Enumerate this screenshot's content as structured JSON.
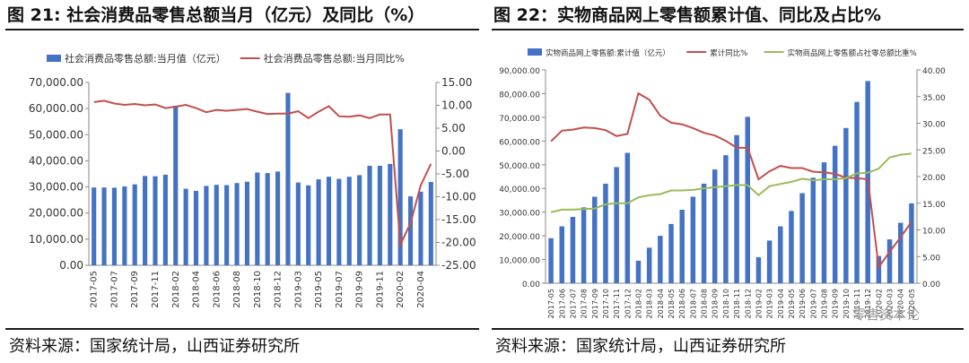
{
  "panels": [
    {
      "title": "图 21: 社会消费品零售总额当月（亿元）及同比（%）",
      "source": "资料来源：国家统计局，山西证券研究所"
    },
    {
      "title": "图 22：实物商品网上零售额累计值、同比及占比%",
      "source": "资料来源：国家统计局，山西证券研究所"
    }
  ],
  "watermark": "零售资本论",
  "colors": {
    "bar": "#4472c4",
    "line_red": "#c0504d",
    "line_green": "#9bbb59",
    "axis": "#888888",
    "text": "#333333"
  },
  "chart_data": [
    {
      "type": "bar",
      "title": "",
      "categories": [
        "2017-05",
        "2017-06",
        "2017-07",
        "2017-08",
        "2017-09",
        "2017-10",
        "2017-11",
        "2017-12",
        "2018-02",
        "2018-03",
        "2018-04",
        "2018-05",
        "2018-06",
        "2018-07",
        "2018-08",
        "2018-09",
        "2018-10",
        "2018-11",
        "2018-12",
        "2019-02",
        "2019-03",
        "2019-04",
        "2019-05",
        "2019-06",
        "2019-07",
        "2019-08",
        "2019-09",
        "2019-10",
        "2019-11",
        "2019-12",
        "2020-02",
        "2020-03",
        "2020-04",
        "2020-05"
      ],
      "x_tick_labels": [
        "2017-05",
        "2017-07",
        "2017-09",
        "2017-11",
        "2018-02",
        "2018-04",
        "2018-06",
        "2018-08",
        "2018-10",
        "2018-12",
        "2019-03",
        "2019-05",
        "2019-07",
        "2019-09",
        "2019-11",
        "2020-02",
        "2020-04"
      ],
      "series": [
        {
          "name": "社会消费品零售总额:当月值（亿元）",
          "type": "bar",
          "axis": "left",
          "values": [
            29800,
            29800,
            29700,
            30200,
            31000,
            34200,
            34100,
            34700,
            61100,
            29300,
            28500,
            30400,
            30800,
            30700,
            31500,
            32000,
            35500,
            35300,
            35900,
            66000,
            31700,
            30600,
            32900,
            33900,
            33100,
            33900,
            34500,
            38100,
            38100,
            38800,
            52100,
            26400,
            28200,
            31900
          ]
        },
        {
          "name": "社会消费品零售总额:当月同比%",
          "type": "line",
          "axis": "right",
          "values": [
            10.7,
            11.0,
            10.4,
            10.1,
            10.3,
            10.0,
            10.2,
            9.4,
            9.7,
            10.1,
            9.4,
            8.5,
            9.0,
            8.8,
            9.0,
            9.2,
            8.6,
            8.1,
            8.2,
            8.2,
            8.7,
            7.2,
            8.6,
            9.8,
            7.6,
            7.5,
            7.8,
            7.2,
            8.0,
            8.0,
            -20.5,
            -15.8,
            -7.5,
            -2.8
          ]
        }
      ],
      "yleft_ticks": [
        "70,000.00",
        "60,000.00",
        "50,000.00",
        "40,000.00",
        "30,000.00",
        "20,000.00",
        "10,000.00",
        "0.00"
      ],
      "yleft_range": [
        0,
        70000
      ],
      "yright_ticks": [
        "15.00",
        "10.00",
        "5.00",
        "0.00",
        "-5.00",
        "-10.00",
        "-15.00",
        "-20.00",
        "-25.00"
      ],
      "yright_range": [
        -25,
        15
      ],
      "legend_position": "top"
    },
    {
      "type": "bar",
      "title": "",
      "categories": [
        "2017-05",
        "2017-06",
        "2017-07",
        "2017-08",
        "2017-09",
        "2017-10",
        "2017-11",
        "2017-12",
        "2018-02",
        "2018-03",
        "2018-04",
        "2018-05",
        "2018-06",
        "2018-07",
        "2018-08",
        "2018-09",
        "2018-10",
        "2018-11",
        "2018-12",
        "2019-02",
        "2019-03",
        "2019-04",
        "2019-05",
        "2019-06",
        "2019-07",
        "2019-08",
        "2019-09",
        "2019-10",
        "2019-11",
        "2019-12",
        "2020-02",
        "2020-03",
        "2020-04",
        "2020-05"
      ],
      "x_tick_labels": [
        "2017-05",
        "2017-06",
        "2017-07",
        "2017-08",
        "2017-09",
        "2017-10",
        "2017-11",
        "2017-12",
        "2018-02",
        "2018-03",
        "2018-04",
        "2018-05",
        "2018-06",
        "2018-07",
        "2018-08",
        "2018-09",
        "2018-10",
        "2018-11",
        "2018-12",
        "2019-02",
        "2019-03",
        "2019-04",
        "2019-05",
        "2019-06",
        "2019-07",
        "2019-08",
        "2019-09",
        "2019-10",
        "2019-11",
        "2019-12",
        "2020-02",
        "2020-03",
        "2020-04",
        "2020-05"
      ],
      "series": [
        {
          "name": "实物商品网上零售额:累计值（亿元）",
          "type": "bar",
          "axis": "left",
          "values": [
            19000,
            24000,
            28000,
            32000,
            36500,
            42000,
            49000,
            55000,
            9500,
            15000,
            20000,
            25000,
            31000,
            36500,
            42000,
            48000,
            54000,
            62500,
            70200,
            11000,
            18000,
            24000,
            30500,
            38000,
            44500,
            51000,
            58000,
            65500,
            76500,
            85300,
            11500,
            18500,
            25500,
            33700
          ]
        },
        {
          "name": "累计同比%",
          "type": "line",
          "color": "red",
          "axis": "right",
          "values": [
            26.6,
            28.6,
            28.8,
            29.2,
            29.1,
            28.7,
            27.6,
            28.0,
            35.6,
            34.4,
            31.4,
            30.1,
            29.8,
            29.1,
            28.2,
            27.7,
            26.7,
            25.4,
            25.4,
            19.5,
            21.0,
            22.0,
            21.6,
            21.6,
            20.9,
            20.8,
            20.5,
            19.8,
            19.7,
            19.5,
            3.0,
            5.9,
            8.6,
            11.5
          ]
        },
        {
          "name": "实物商品网上零售额占社零总额比重%",
          "type": "line",
          "color": "green",
          "axis": "right",
          "values": [
            13.3,
            13.8,
            13.8,
            13.9,
            14.0,
            14.8,
            15.0,
            15.0,
            16.1,
            16.5,
            16.7,
            17.4,
            17.4,
            17.5,
            17.8,
            18.0,
            18.2,
            18.4,
            18.4,
            16.5,
            18.2,
            18.6,
            19.0,
            19.6,
            19.3,
            19.5,
            19.5,
            19.7,
            20.6,
            20.7,
            21.5,
            23.6,
            24.1,
            24.3
          ]
        }
      ],
      "yleft_ticks": [
        "90,000.00",
        "80,000.00",
        "70,000.00",
        "60,000.00",
        "50,000.00",
        "40,000.00",
        "30,000.00",
        "20,000.00",
        "10,000.00",
        "0.00"
      ],
      "yleft_range": [
        0,
        90000
      ],
      "yright_ticks": [
        "40.00",
        "35.00",
        "30.00",
        "25.00",
        "20.00",
        "15.00",
        "10.00",
        "5.00",
        "0.00"
      ],
      "yright_range": [
        0,
        40
      ],
      "legend_position": "top"
    }
  ]
}
